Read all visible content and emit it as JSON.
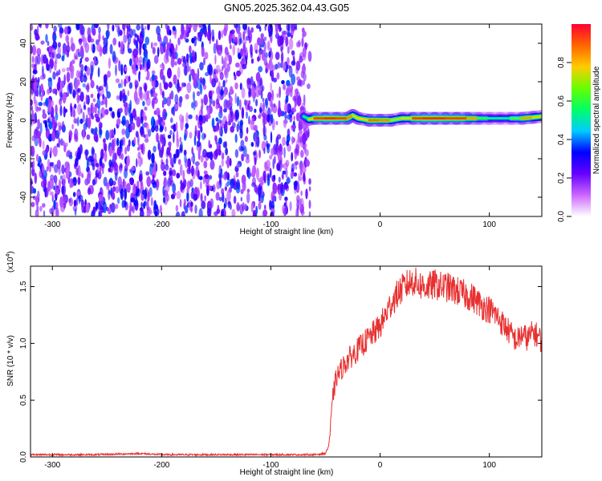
{
  "figure": {
    "title": "GN05.2025.362.04.43.G05"
  },
  "chart_data": [
    {
      "type": "heatmap",
      "title": "GN05.2025.362.04.43.G05",
      "xlabel": "Height of straight line (km)",
      "ylabel": "Frequency (Hz)",
      "xlim": [
        -320,
        148
      ],
      "ylim": [
        -50,
        50
      ],
      "xticks": [
        -300,
        -200,
        -100,
        0,
        100
      ],
      "yticks": [
        -40,
        -20,
        0,
        20,
        40
      ],
      "grid": false,
      "noise_region_x": [
        -320,
        -70
      ],
      "tone_region_x": [
        -70,
        148
      ],
      "tone_frequency_hz": 1,
      "ridge": {
        "x": [
          -70,
          -65,
          -60,
          -50,
          -40,
          -30,
          -25,
          -20,
          -10,
          0,
          10,
          20,
          30,
          40,
          50,
          60,
          70,
          80,
          90,
          100,
          110,
          120,
          130,
          140,
          148
        ],
        "freq": [
          2,
          0.5,
          1,
          1,
          1,
          1,
          2.5,
          1,
          0,
          0,
          0,
          1,
          1,
          1,
          1,
          1,
          1,
          1,
          1,
          1,
          1,
          1,
          1,
          1.5,
          2
        ],
        "amplitude": [
          0.5,
          0.6,
          0.9,
          0.95,
          0.95,
          0.9,
          0.8,
          0.7,
          0.85,
          0.9,
          0.8,
          0.6,
          0.9,
          0.95,
          0.95,
          0.95,
          0.9,
          0.95,
          0.7,
          0.5,
          0.55,
          0.5,
          0.75,
          0.9,
          0.6
        ]
      },
      "colorbar": {
        "label": "Normalized spectral amplitude",
        "range": [
          0.0,
          1.0
        ],
        "ticks": [
          "0.0",
          "0.2",
          "0.4",
          "0.6",
          "0.8"
        ],
        "tick_values": [
          0.0,
          0.2,
          0.4,
          0.6,
          0.8
        ],
        "colors": [
          "#ffffff",
          "#cc66ff",
          "#6600ff",
          "#0000ff",
          "#00ccff",
          "#00ff66",
          "#66ff00",
          "#ffcc00",
          "#ff6600",
          "#ff0033"
        ]
      }
    },
    {
      "type": "line",
      "xlabel": "Height of straight line (km)",
      "ylabel": "SNR (10 * v/v)",
      "scale_note": "(x10",
      "scale_exp": "4",
      "xlim": [
        -320,
        148
      ],
      "ylim": [
        0,
        1.68
      ],
      "xticks": [
        -300,
        -200,
        -100,
        0,
        100
      ],
      "yticks": [
        0.0,
        0.5,
        1.0,
        1.5
      ],
      "ytick_labels": [
        "0.0",
        "0.5",
        "1.0",
        "1.5"
      ],
      "grid": false,
      "series": [
        {
          "color": "#e83030",
          "x": [
            -320,
            -300,
            -280,
            -260,
            -240,
            -220,
            -200,
            -180,
            -160,
            -140,
            -120,
            -100,
            -80,
            -60,
            -50,
            -47,
            -45,
            -43,
            -40,
            -35,
            -30,
            -25,
            -20,
            -15,
            -10,
            -5,
            0,
            5,
            10,
            15,
            20,
            25,
            30,
            35,
            40,
            45,
            50,
            55,
            60,
            65,
            70,
            75,
            80,
            85,
            90,
            95,
            100,
            105,
            110,
            115,
            120,
            125,
            130,
            135,
            140,
            145,
            148
          ],
          "y": [
            0.02,
            0.02,
            0.02,
            0.02,
            0.025,
            0.03,
            0.02,
            0.02,
            0.02,
            0.02,
            0.02,
            0.02,
            0.02,
            0.02,
            0.03,
            0.1,
            0.3,
            0.55,
            0.7,
            0.78,
            0.85,
            0.9,
            0.95,
            1.0,
            1.05,
            1.1,
            1.15,
            1.25,
            1.35,
            1.42,
            1.48,
            1.52,
            1.55,
            1.52,
            1.5,
            1.5,
            1.52,
            1.5,
            1.5,
            1.48,
            1.46,
            1.44,
            1.42,
            1.4,
            1.36,
            1.32,
            1.3,
            1.26,
            1.2,
            1.14,
            1.08,
            1.02,
            1.08,
            1.04,
            1.1,
            1.06,
            1.02
          ]
        }
      ]
    }
  ]
}
